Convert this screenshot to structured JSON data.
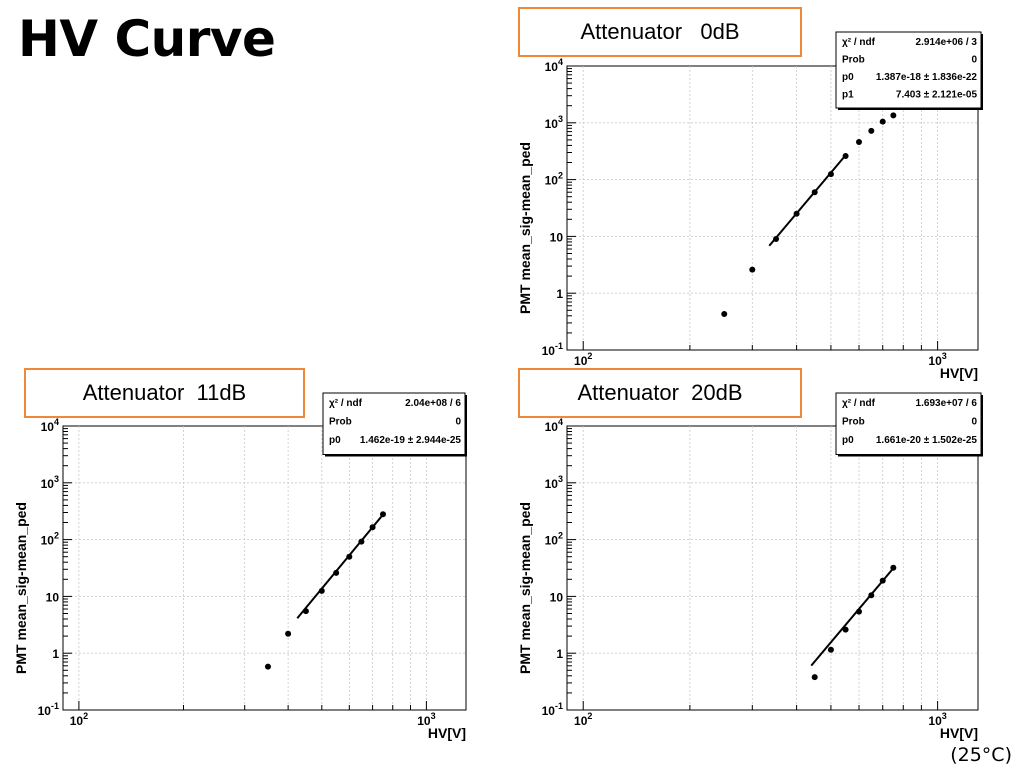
{
  "slide": {
    "title": "HV Curve",
    "temperature": "(25°C)"
  },
  "colors": {
    "caption_border": "#f0883a",
    "marker": "#000000",
    "grid": "#c8c8c8"
  },
  "chart_data": [
    {
      "type": "scatter",
      "caption": "Attenuator   0dB",
      "xlabel": "HV[V]",
      "ylabel": "PMT mean_sig-mean_ped",
      "x_scale": "log",
      "y_scale": "log",
      "xlim": [
        90,
        1300
      ],
      "ylim": [
        0.1,
        10000
      ],
      "x_ticks": [
        {
          "v": 100,
          "b": "10",
          "e": "2"
        },
        {
          "v": 1000,
          "b": "10",
          "e": "3"
        }
      ],
      "y_ticks": [
        {
          "v": 0.1,
          "b": "10",
          "e": "-1"
        },
        {
          "v": 1,
          "b": "1",
          "e": ""
        },
        {
          "v": 10,
          "b": "10",
          "e": ""
        },
        {
          "v": 100,
          "b": "10",
          "e": "2"
        },
        {
          "v": 1000,
          "b": "10",
          "e": "3"
        },
        {
          "v": 10000,
          "b": "10",
          "e": "4"
        }
      ],
      "grid": true,
      "points": [
        {
          "x": 250,
          "y": 0.43
        },
        {
          "x": 300,
          "y": 2.6
        },
        {
          "x": 350,
          "y": 9
        },
        {
          "x": 400,
          "y": 25
        },
        {
          "x": 450,
          "y": 60
        },
        {
          "x": 500,
          "y": 125
        },
        {
          "x": 550,
          "y": 260
        },
        {
          "x": 600,
          "y": 460
        },
        {
          "x": 650,
          "y": 720
        },
        {
          "x": 700,
          "y": 1050
        },
        {
          "x": 750,
          "y": 1350
        }
      ],
      "fit": {
        "x_start": 335,
        "x_end": 550,
        "p0": 1.387e-18,
        "p1": 7.403
      },
      "stats": [
        {
          "label": "χ² / ndf",
          "value": "2.914e+06 / 3"
        },
        {
          "label": "Prob",
          "value": "0"
        },
        {
          "label": "p0",
          "value": "1.387e-18 ± 1.836e-22"
        },
        {
          "label": "p1",
          "value": "7.403 ± 2.121e-05"
        }
      ]
    },
    {
      "type": "scatter",
      "caption": "Attenuator  11dB",
      "xlabel": "HV[V]",
      "ylabel": "PMT mean_sig-mean_ped",
      "x_scale": "log",
      "y_scale": "log",
      "xlim": [
        90,
        1300
      ],
      "ylim": [
        0.1,
        10000
      ],
      "x_ticks": [
        {
          "v": 100,
          "b": "10",
          "e": "2"
        },
        {
          "v": 1000,
          "b": "10",
          "e": "3"
        }
      ],
      "y_ticks": [
        {
          "v": 0.1,
          "b": "10",
          "e": "-1"
        },
        {
          "v": 1,
          "b": "1",
          "e": ""
        },
        {
          "v": 10,
          "b": "10",
          "e": ""
        },
        {
          "v": 100,
          "b": "10",
          "e": "2"
        },
        {
          "v": 1000,
          "b": "10",
          "e": "3"
        },
        {
          "v": 10000,
          "b": "10",
          "e": "4"
        }
      ],
      "grid": true,
      "points": [
        {
          "x": 350,
          "y": 0.58
        },
        {
          "x": 400,
          "y": 2.2
        },
        {
          "x": 450,
          "y": 5.5
        },
        {
          "x": 500,
          "y": 12.5
        },
        {
          "x": 550,
          "y": 26
        },
        {
          "x": 600,
          "y": 50
        },
        {
          "x": 650,
          "y": 92
        },
        {
          "x": 700,
          "y": 165
        },
        {
          "x": 750,
          "y": 280
        }
      ],
      "fit": {
        "x_start": 425,
        "x_end": 750,
        "p0": 1.462e-19,
        "p1": 7.4
      },
      "stats": [
        {
          "label": "χ² / ndf",
          "value": "2.04e+08 / 6"
        },
        {
          "label": "Prob",
          "value": "0"
        },
        {
          "label": "p0",
          "value": "1.462e-19 ± 2.944e-25"
        }
      ]
    },
    {
      "type": "scatter",
      "caption": "Attenuator  20dB",
      "xlabel": "HV[V]",
      "ylabel": "PMT mean_sig-mean_ped",
      "x_scale": "log",
      "y_scale": "log",
      "xlim": [
        90,
        1300
      ],
      "ylim": [
        0.1,
        10000
      ],
      "x_ticks": [
        {
          "v": 100,
          "b": "10",
          "e": "2"
        },
        {
          "v": 1000,
          "b": "10",
          "e": "3"
        }
      ],
      "y_ticks": [
        {
          "v": 0.1,
          "b": "10",
          "e": "-1"
        },
        {
          "v": 1,
          "b": "1",
          "e": ""
        },
        {
          "v": 10,
          "b": "10",
          "e": ""
        },
        {
          "v": 100,
          "b": "10",
          "e": "2"
        },
        {
          "v": 1000,
          "b": "10",
          "e": "3"
        },
        {
          "v": 10000,
          "b": "10",
          "e": "4"
        }
      ],
      "grid": true,
      "points": [
        {
          "x": 450,
          "y": 0.38
        },
        {
          "x": 500,
          "y": 1.15
        },
        {
          "x": 550,
          "y": 2.6
        },
        {
          "x": 600,
          "y": 5.4
        },
        {
          "x": 650,
          "y": 10.5
        },
        {
          "x": 700,
          "y": 19
        },
        {
          "x": 750,
          "y": 32
        }
      ],
      "fit": {
        "x_start": 440,
        "x_end": 750,
        "p0": 1.661e-20,
        "p1": 7.4
      },
      "stats": [
        {
          "label": "χ² / ndf",
          "value": "1.693e+07 / 6"
        },
        {
          "label": "Prob",
          "value": "0"
        },
        {
          "label": "p0",
          "value": "1.661e-20 ± 1.502e-25"
        }
      ]
    }
  ]
}
